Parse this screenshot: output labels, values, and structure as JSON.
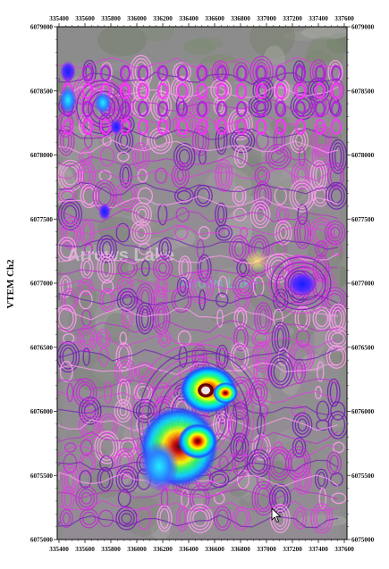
{
  "map": {
    "side_title": "VTEM Ch2",
    "x_ticks": [
      "335400",
      "335600",
      "335800",
      "336000",
      "336200",
      "336400",
      "336600",
      "336800",
      "337000",
      "337200",
      "337400",
      "337600"
    ],
    "y_ticks": [
      "6079000",
      "6078500",
      "6078000",
      "6077500",
      "6077000",
      "6076500",
      "6076000",
      "6075500",
      "6075000"
    ],
    "background_labels": [
      "Arrows Lake",
      "Arrows Lake"
    ],
    "colors": {
      "contour_main": "#e040e0",
      "contour_dark": "#7a1fb8",
      "contour_light": "#ff9cf0",
      "background": "#8c8c8c",
      "anomaly_high": "#c00000",
      "anomaly_mid": "#ffff00",
      "anomaly_low": "#00c8ff"
    },
    "icons": [
      "mouse-cursor-icon"
    ]
  }
}
